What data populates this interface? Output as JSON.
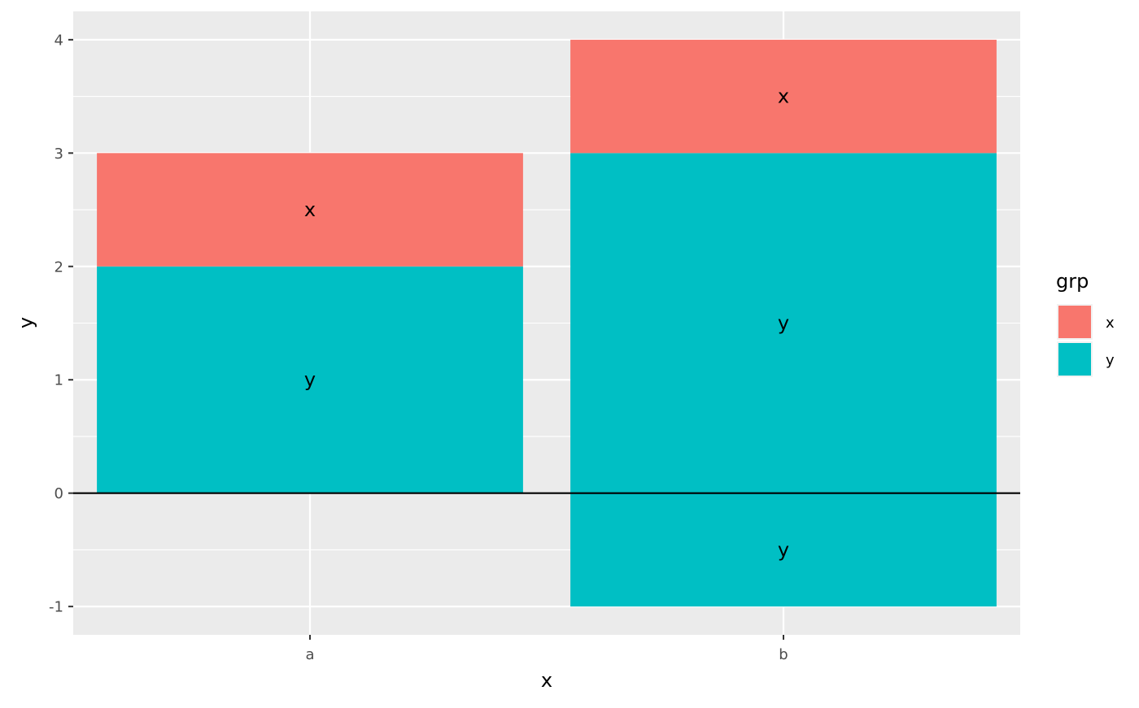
{
  "chart_data": {
    "type": "bar",
    "stacked": true,
    "categories": [
      "a",
      "b"
    ],
    "xlabel": "x",
    "ylabel": "y",
    "ylim": [
      -1.25,
      4.25
    ],
    "yticks": [
      -1,
      0,
      1,
      2,
      3,
      4
    ],
    "ytick_labels": [
      "-1",
      "0",
      "1",
      "2",
      "3",
      "4"
    ],
    "grid": true,
    "zero_line": true,
    "segments": [
      {
        "category": "a",
        "group": "y",
        "y0": 0,
        "y1": 2,
        "label": "y"
      },
      {
        "category": "a",
        "group": "x",
        "y0": 2,
        "y1": 3,
        "label": "x"
      },
      {
        "category": "b",
        "group": "y",
        "y0": 0,
        "y1": 3,
        "label": "y"
      },
      {
        "category": "b",
        "group": "x",
        "y0": 3,
        "y1": 4,
        "label": "x"
      },
      {
        "category": "b",
        "group": "y",
        "y0": -1,
        "y1": 0,
        "label": "y"
      }
    ],
    "legend": {
      "title": "grp",
      "position": "right",
      "items": [
        {
          "label": "x",
          "color": "#F8766D"
        },
        {
          "label": "y",
          "color": "#00BFC4"
        }
      ]
    },
    "colors": {
      "panel_background": "#EBEBEB",
      "grid_major": "#FFFFFF",
      "zero_line": "#000000"
    }
  }
}
